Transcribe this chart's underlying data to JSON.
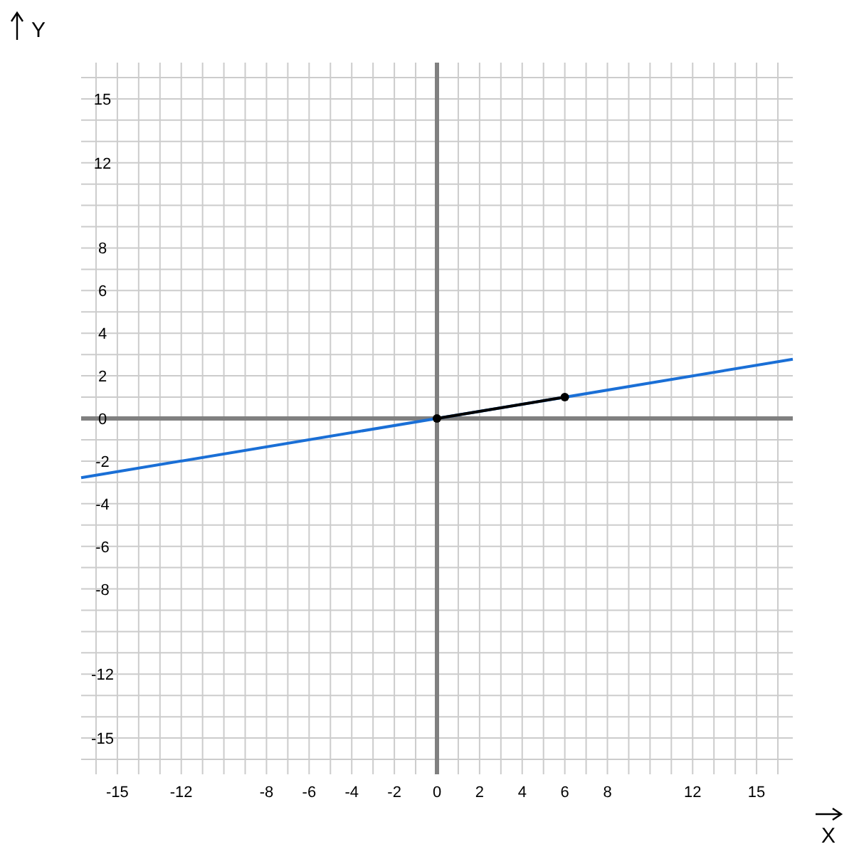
{
  "chart_data": {
    "type": "line",
    "xlabel": "X",
    "ylabel": "Y",
    "grid": true,
    "xlim": [
      -16.7,
      16.7
    ],
    "ylim": [
      -16.7,
      16.7
    ],
    "xticks": [
      {
        "value": -16,
        "label": null
      },
      -15,
      {
        "value": -14,
        "label": null
      },
      {
        "value": -13,
        "label": null
      },
      -12,
      {
        "value": -11,
        "label": null
      },
      {
        "value": -10,
        "label": null
      },
      {
        "value": -9,
        "label": null
      },
      -8,
      {
        "value": -7,
        "label": null
      },
      -6,
      {
        "value": -5,
        "label": null
      },
      -4,
      {
        "value": -3,
        "label": null
      },
      -2,
      {
        "value": -1,
        "label": null
      },
      0,
      {
        "value": 1,
        "label": null
      },
      2,
      {
        "value": 3,
        "label": null
      },
      4,
      {
        "value": 5,
        "label": null
      },
      6,
      {
        "value": 7,
        "label": null
      },
      8,
      {
        "value": 9,
        "label": null
      },
      {
        "value": 10,
        "label": null
      },
      {
        "value": 11,
        "label": null
      },
      12,
      {
        "value": 13,
        "label": null
      },
      {
        "value": 14,
        "label": null
      },
      15,
      {
        "value": 16,
        "label": null
      }
    ],
    "yticks": [
      {
        "value": -16,
        "label": null
      },
      -15,
      {
        "value": -14,
        "label": null
      },
      {
        "value": -13,
        "label": null
      },
      -12,
      {
        "value": -11,
        "label": null
      },
      {
        "value": -10,
        "label": null
      },
      {
        "value": -9,
        "label": null
      },
      -8,
      {
        "value": -7,
        "label": null
      },
      -6,
      {
        "value": -5,
        "label": null
      },
      -4,
      {
        "value": -3,
        "label": null
      },
      -2,
      {
        "value": -1,
        "label": null
      },
      0,
      {
        "value": 1,
        "label": null
      },
      2,
      {
        "value": 3,
        "label": null
      },
      4,
      {
        "value": 5,
        "label": null
      },
      6,
      {
        "value": 7,
        "label": null
      },
      8,
      {
        "value": 9,
        "label": null
      },
      {
        "value": 10,
        "label": null
      },
      {
        "value": 11,
        "label": null
      },
      12,
      {
        "value": 13,
        "label": null
      },
      {
        "value": 14,
        "label": null
      },
      15,
      {
        "value": 16,
        "label": null
      }
    ],
    "series": [
      {
        "color": "#1a6fd6",
        "x": [
          -16.7,
          16.7
        ],
        "values": [
          -2.78,
          2.78
        ],
        "marker": "none"
      },
      {
        "color": "#000000",
        "x": [
          0,
          6
        ],
        "values": [
          0,
          1
        ],
        "marker": "circle"
      }
    ]
  }
}
